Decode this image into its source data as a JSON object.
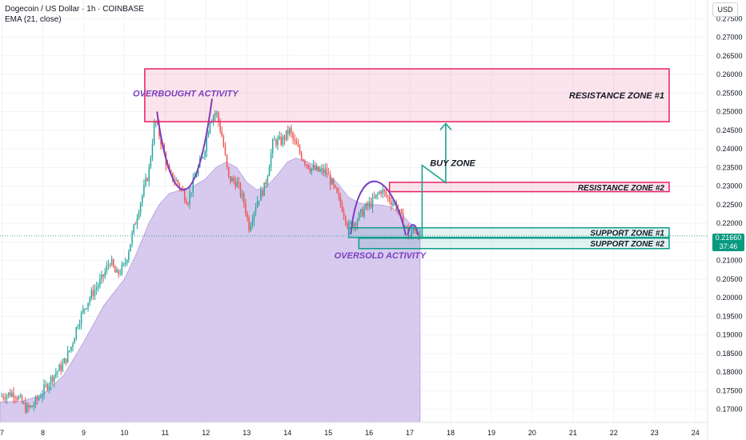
{
  "legend": {
    "symbol": "Dogecoin / US Dollar · 1h · COINBASE",
    "indicator": "EMA (21, close)"
  },
  "currency": "USD",
  "price_badge": {
    "price": "0.21660",
    "countdown": "37:46"
  },
  "colors": {
    "up": "#26a69a",
    "down": "#ef5350",
    "ema_fill": "#c9b8e8",
    "resistance": "#e91e63",
    "support": "#0f9d8a",
    "annotation_purple": "#7b3fbf",
    "arrow": "#1ba590"
  },
  "chart_data": {
    "type": "candlestick",
    "x_tick_labels": [
      "7",
      "8",
      "9",
      "10",
      "11",
      "12",
      "13",
      "14",
      "15",
      "16",
      "17",
      "18",
      "19",
      "20",
      "21",
      "22",
      "23",
      "24"
    ],
    "y_tick_labels": [
      "0.27500",
      "0.27000",
      "0.26500",
      "0.26000",
      "0.25500",
      "0.25000",
      "0.24500",
      "0.24000",
      "0.23500",
      "0.23000",
      "0.22500",
      "0.22000",
      "0.21500",
      "0.21000",
      "0.20500",
      "0.20000",
      "0.19500",
      "0.19000",
      "0.18500",
      "0.18000",
      "0.17500",
      "0.17000"
    ],
    "ylim": [
      0.1665,
      0.28
    ],
    "xlim": [
      6.95,
      24.3
    ],
    "last_price": 0.2166,
    "price_path": [
      [
        6.95,
        0.1735
      ],
      [
        7.3,
        0.1745
      ],
      [
        7.6,
        0.17
      ],
      [
        7.75,
        0.1708
      ],
      [
        7.95,
        0.174
      ],
      [
        8.25,
        0.179
      ],
      [
        8.5,
        0.182
      ],
      [
        8.7,
        0.187
      ],
      [
        8.85,
        0.193
      ],
      [
        9.05,
        0.198
      ],
      [
        9.2,
        0.201
      ],
      [
        9.45,
        0.205
      ],
      [
        9.65,
        0.21
      ],
      [
        9.8,
        0.206
      ],
      [
        10.0,
        0.2085
      ],
      [
        10.15,
        0.215
      ],
      [
        10.35,
        0.224
      ],
      [
        10.6,
        0.234
      ],
      [
        10.75,
        0.248
      ],
      [
        10.9,
        0.242
      ],
      [
        11.1,
        0.233
      ],
      [
        11.3,
        0.231
      ],
      [
        11.55,
        0.226
      ],
      [
        11.75,
        0.233
      ],
      [
        11.95,
        0.239
      ],
      [
        12.1,
        0.248
      ],
      [
        12.25,
        0.25
      ],
      [
        12.4,
        0.243
      ],
      [
        12.55,
        0.232
      ],
      [
        12.75,
        0.231
      ],
      [
        12.95,
        0.225
      ],
      [
        13.05,
        0.219
      ],
      [
        13.25,
        0.226
      ],
      [
        13.45,
        0.23
      ],
      [
        13.65,
        0.242
      ],
      [
        13.85,
        0.242
      ],
      [
        14.05,
        0.245
      ],
      [
        14.15,
        0.242
      ],
      [
        14.35,
        0.238
      ],
      [
        14.55,
        0.235
      ],
      [
        14.75,
        0.234
      ],
      [
        14.95,
        0.234
      ],
      [
        15.15,
        0.229
      ],
      [
        15.35,
        0.224
      ],
      [
        15.5,
        0.219
      ],
      [
        15.7,
        0.221
      ],
      [
        15.9,
        0.224
      ],
      [
        16.1,
        0.226
      ],
      [
        16.3,
        0.229
      ],
      [
        16.45,
        0.227
      ],
      [
        16.65,
        0.225
      ],
      [
        16.85,
        0.22
      ],
      [
        17.0,
        0.216
      ],
      [
        17.1,
        0.219
      ],
      [
        17.25,
        0.2166
      ]
    ],
    "ema_path": [
      [
        6.95,
        0.172
      ],
      [
        7.5,
        0.1722
      ],
      [
        8.0,
        0.174
      ],
      [
        8.5,
        0.179
      ],
      [
        9.0,
        0.188
      ],
      [
        9.5,
        0.198
      ],
      [
        10.0,
        0.205
      ],
      [
        10.3,
        0.212
      ],
      [
        10.6,
        0.22
      ],
      [
        10.85,
        0.225
      ],
      [
        11.1,
        0.228
      ],
      [
        11.4,
        0.229
      ],
      [
        11.7,
        0.23
      ],
      [
        12.0,
        0.232
      ],
      [
        12.25,
        0.235
      ],
      [
        12.5,
        0.2365
      ],
      [
        12.75,
        0.235
      ],
      [
        13.0,
        0.231
      ],
      [
        13.25,
        0.229
      ],
      [
        13.5,
        0.23
      ],
      [
        13.75,
        0.233
      ],
      [
        14.0,
        0.2365
      ],
      [
        14.2,
        0.2375
      ],
      [
        14.5,
        0.2365
      ],
      [
        14.75,
        0.235
      ],
      [
        15.0,
        0.233
      ],
      [
        15.25,
        0.2305
      ],
      [
        15.5,
        0.227
      ],
      [
        15.75,
        0.2255
      ],
      [
        16.0,
        0.225
      ],
      [
        16.25,
        0.225
      ],
      [
        16.5,
        0.2245
      ],
      [
        16.75,
        0.223
      ],
      [
        17.0,
        0.22
      ],
      [
        17.25,
        0.2185
      ]
    ],
    "zones": [
      {
        "label": "RESISTANCE ZONE #1",
        "kind": "resistance",
        "x_from": 10.5,
        "x_to": 24.2,
        "y_from": 0.2473,
        "y_to": 0.2615
      },
      {
        "label": "RESISTANCE ZONE #2",
        "kind": "resistance",
        "x_from": 16.5,
        "x_to": 24.2,
        "y_from": 0.2285,
        "y_to": 0.231
      },
      {
        "label": "SUPPORT ZONE #1",
        "kind": "support",
        "x_from": 15.5,
        "x_to": 24.2,
        "y_from": 0.2162,
        "y_to": 0.2188
      },
      {
        "label": "SUPPORT ZONE #2",
        "kind": "support",
        "x_from": 15.75,
        "x_to": 24.2,
        "y_from": 0.2132,
        "y_to": 0.216
      }
    ],
    "annotations": [
      {
        "text": "OVERBOUGHT ACTIVITY",
        "x": 11.5,
        "y": 0.2541
      },
      {
        "text": "OVERSOLD ACTIVITY",
        "x": 16.27,
        "y": 0.2106
      },
      {
        "text": "BUY ZONE",
        "x": 18.05,
        "y": 0.2354
      }
    ]
  }
}
